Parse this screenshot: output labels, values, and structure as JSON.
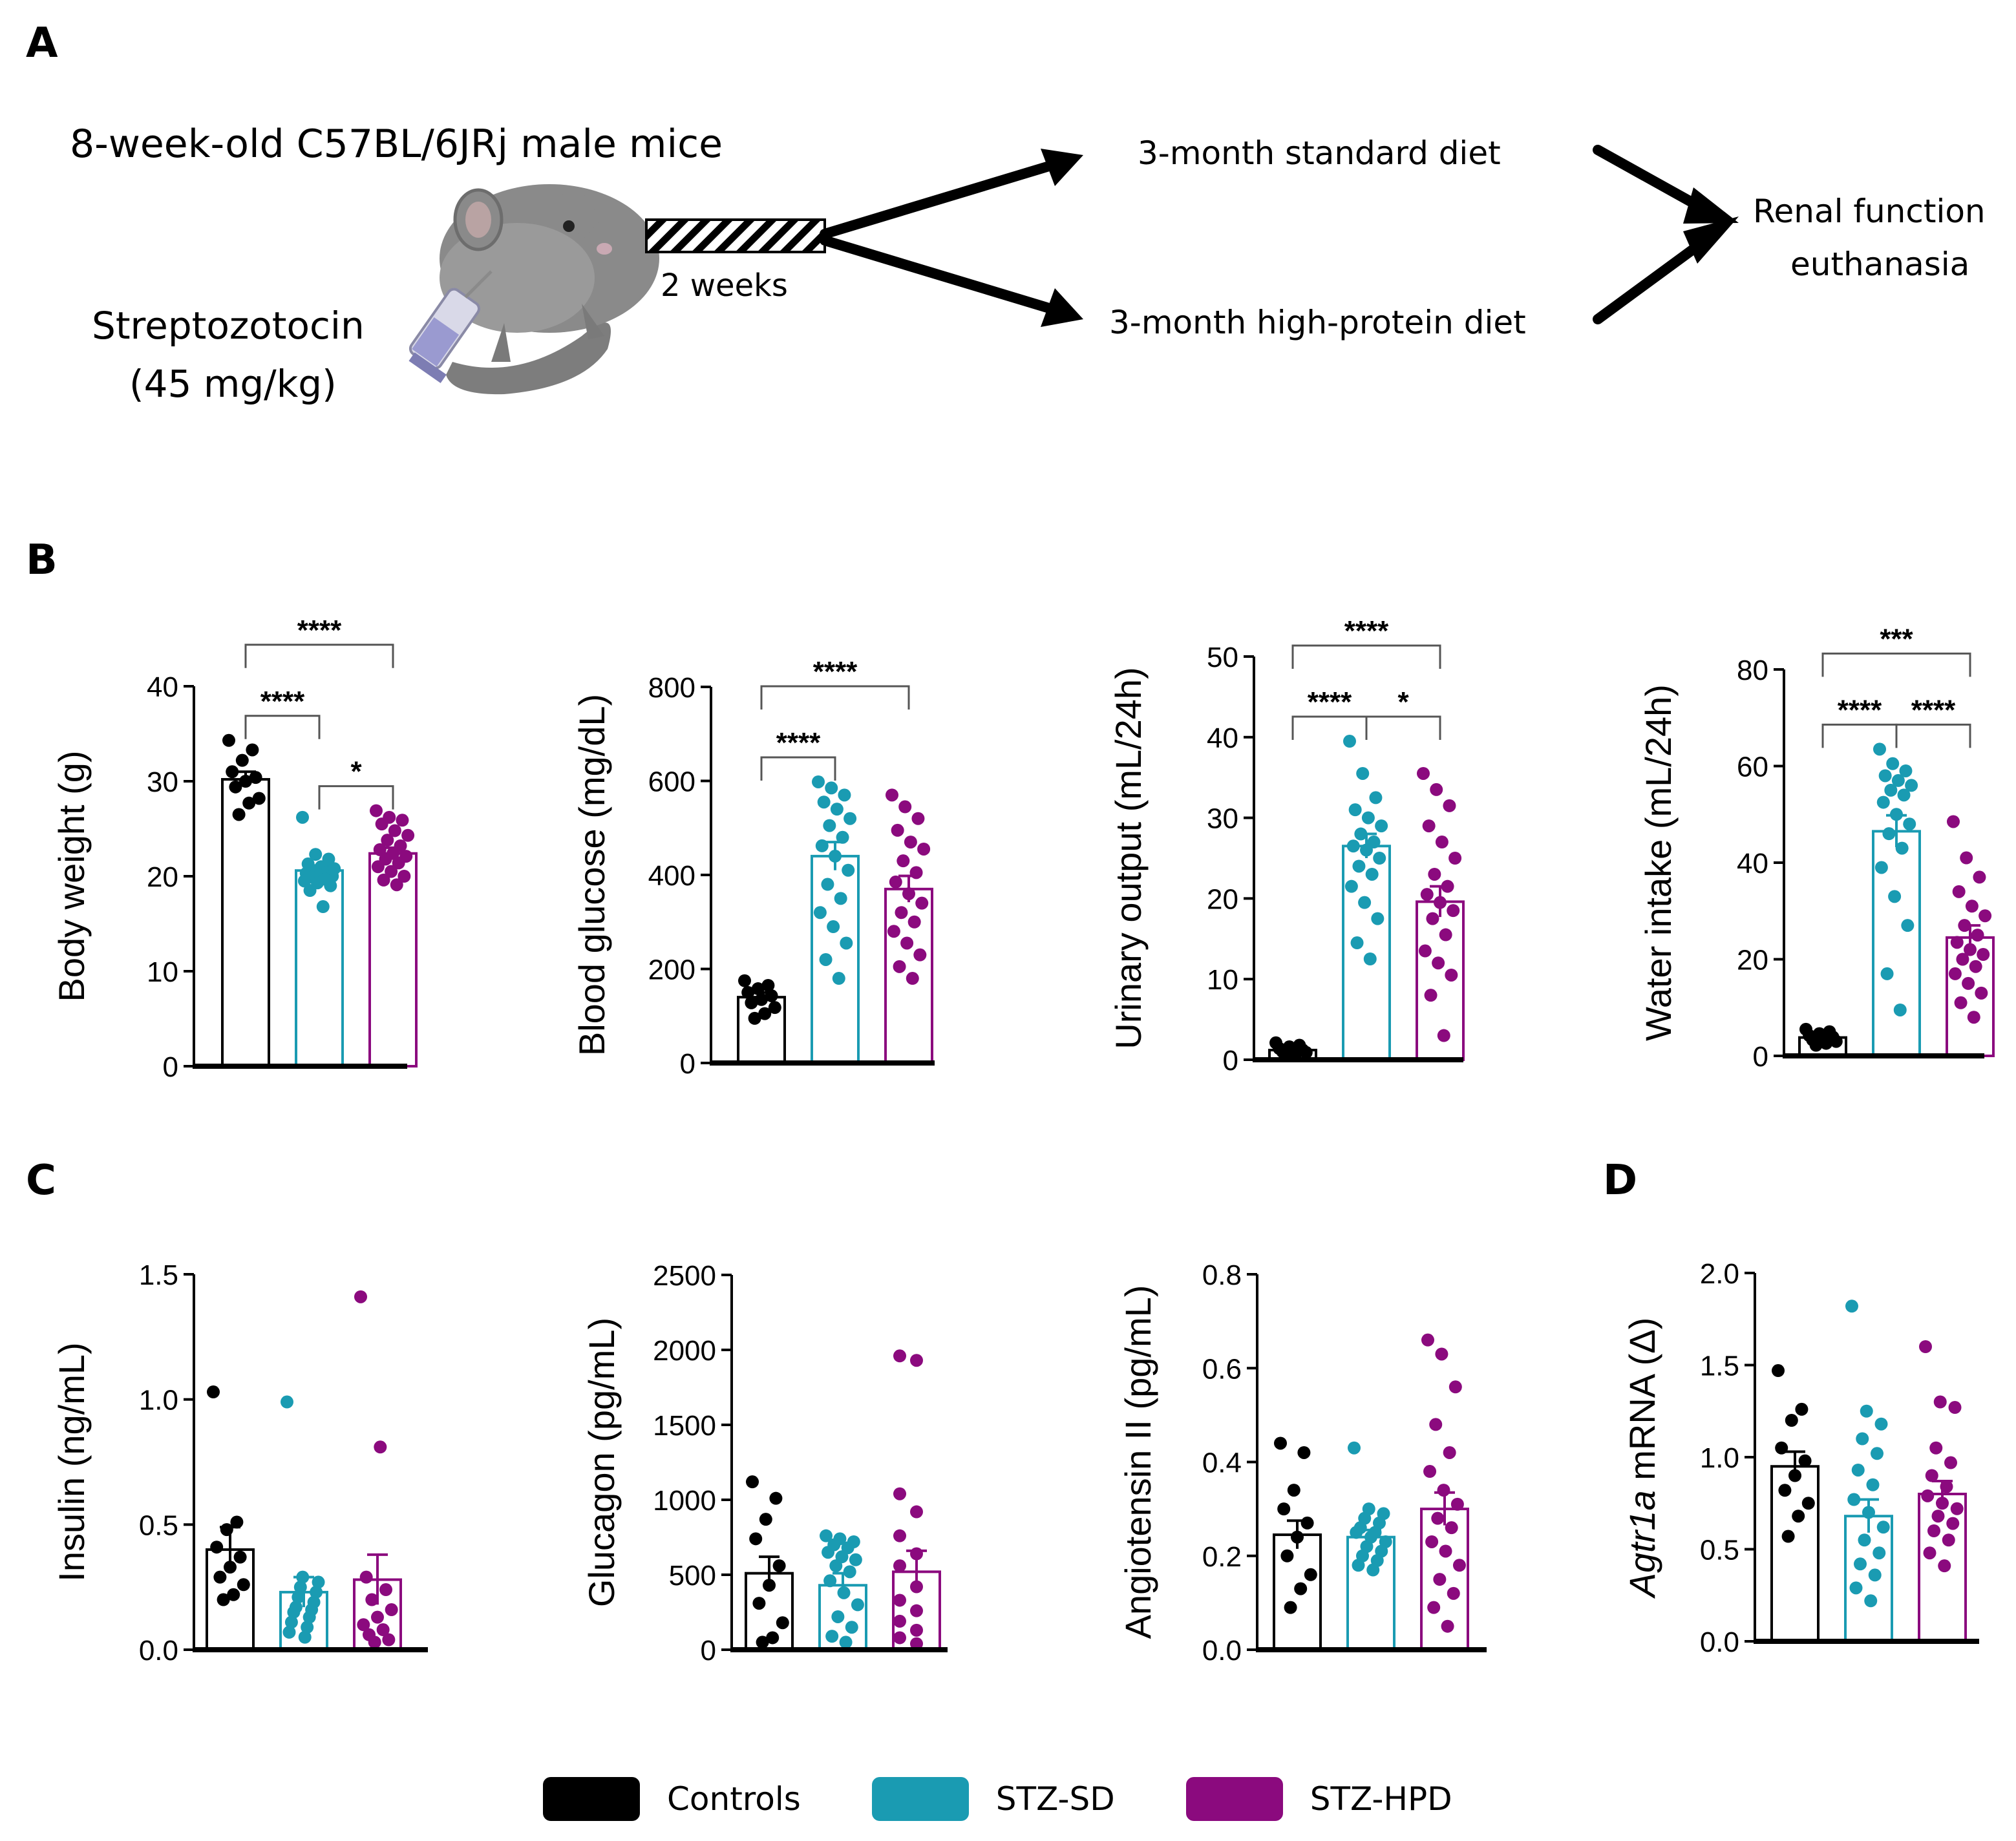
{
  "panels": {
    "a": "A",
    "b": "B",
    "c": "C",
    "d": "D"
  },
  "schema": {
    "mice": "8-week-old C57BL/6JRj male mice",
    "drug": "Streptozotocin",
    "dose": "(45 mg/kg)",
    "duration": "2 weeks",
    "diet_standard": "3-month standard diet",
    "diet_high_protein": "3-month high-protein diet",
    "outcome_line1": "Renal function",
    "outcome_line2": "euthanasia",
    "illustration": "mouse-with-syringe-illustration"
  },
  "legend": [
    {
      "label": "Controls",
      "color": "#000000"
    },
    {
      "label": "STZ-SD",
      "color": "#1a9bb2"
    },
    {
      "label": "STZ-HPD",
      "color": "#8b0a7e"
    }
  ],
  "chart_data": [
    {
      "id": "body-weight",
      "type": "bar",
      "ylabel": "Body weight (g)",
      "categories": [
        "Controls",
        "STZ-SD",
        "STZ-HPD"
      ],
      "ylim": [
        0,
        40
      ],
      "yticks": [
        "0",
        "10",
        "20",
        "30",
        "40"
      ],
      "values": [
        30.2,
        20.6,
        22.4
      ],
      "sem": [
        0.8,
        0.5,
        0.6
      ],
      "points": [
        [
          34.3,
          33.3,
          32.2,
          31.0,
          30.4,
          30.0,
          29.4,
          28.2,
          27.7,
          26.5
        ],
        [
          26.2,
          22.3,
          21.8,
          21.3,
          21.0,
          20.8,
          20.6,
          20.4,
          20.3,
          20.1,
          20.0,
          19.9,
          19.7,
          19.5,
          19.3,
          19.0,
          18.5,
          16.8
        ],
        [
          26.9,
          26.2,
          25.9,
          25.5,
          24.8,
          24.3,
          23.8,
          23.2,
          22.8,
          22.4,
          22.1,
          21.8,
          21.4,
          21.0,
          20.5,
          20.0,
          19.6,
          19.1
        ]
      ],
      "significance": [
        {
          "from": 0,
          "to": 1,
          "label": "****"
        },
        {
          "from": 1,
          "to": 2,
          "label": "*"
        },
        {
          "from": 0,
          "to": 2,
          "label": "****"
        }
      ]
    },
    {
      "id": "blood-glucose",
      "type": "bar",
      "ylabel": "Blood glucose (mg/dL)",
      "categories": [
        "Controls",
        "STZ-SD",
        "STZ-HPD"
      ],
      "ylim": [
        0,
        800
      ],
      "yticks": [
        "0",
        "200",
        "400",
        "600",
        "800"
      ],
      "values": [
        140,
        440,
        370
      ],
      "sem": [
        10,
        30,
        28
      ],
      "points": [
        [
          175,
          165,
          158,
          150,
          143,
          135,
          128,
          118,
          105,
          95
        ],
        [
          598,
          585,
          570,
          555,
          540,
          520,
          505,
          480,
          462,
          440,
          410,
          380,
          350,
          320,
          290,
          255,
          220,
          180
        ],
        [
          570,
          545,
          520,
          495,
          470,
          455,
          430,
          405,
          385,
          360,
          340,
          320,
          300,
          280,
          255,
          230,
          205,
          180
        ]
      ],
      "significance": [
        {
          "from": 0,
          "to": 1,
          "label": "****"
        },
        {
          "from": 0,
          "to": 2,
          "label": "****"
        }
      ]
    },
    {
      "id": "urinary-output",
      "type": "bar",
      "ylabel": "Urinary output (mL/24h)",
      "categories": [
        "Controls",
        "STZ-SD",
        "STZ-HPD"
      ],
      "ylim": [
        0,
        50
      ],
      "yticks": [
        "0",
        "10",
        "20",
        "30",
        "40",
        "50"
      ],
      "values": [
        1.2,
        26.5,
        19.6
      ],
      "sem": [
        0.2,
        1.5,
        1.9
      ],
      "points": [
        [
          2.1,
          1.8,
          1.6,
          1.4,
          1.2,
          1.1,
          1.0,
          0.9,
          0.8,
          0.6
        ],
        [
          39.5,
          35.5,
          32.5,
          31.0,
          30.0,
          29.0,
          28.0,
          27.0,
          26.5,
          26.0,
          25.0,
          24.0,
          23.0,
          21.5,
          19.5,
          17.5,
          14.5,
          12.5
        ],
        [
          35.5,
          33.5,
          31.5,
          29.0,
          27.0,
          25.0,
          23.0,
          21.5,
          20.5,
          19.5,
          18.5,
          17.5,
          15.5,
          13.5,
          12.0,
          10.5,
          8.0,
          3.0
        ]
      ],
      "significance": [
        {
          "from": 0,
          "to": 1,
          "label": "****"
        },
        {
          "from": 1,
          "to": 2,
          "label": "*"
        },
        {
          "from": 0,
          "to": 2,
          "label": "****"
        }
      ]
    },
    {
      "id": "water-intake",
      "type": "bar",
      "ylabel": "Water intake (mL/24h)",
      "categories": [
        "Controls",
        "STZ-SD",
        "STZ-HPD"
      ],
      "ylim": [
        0,
        80
      ],
      "yticks": [
        "0",
        "20",
        "40",
        "60",
        "80"
      ],
      "values": [
        3.8,
        46.5,
        24.5
      ],
      "sem": [
        0.3,
        3.3,
        2.5
      ],
      "points": [
        [
          5.5,
          5.0,
          4.6,
          4.2,
          3.9,
          3.6,
          3.3,
          3.0,
          2.6,
          2.2
        ],
        [
          63.5,
          60.5,
          59.0,
          58.0,
          57.0,
          56.0,
          55.0,
          54.0,
          52.5,
          50.0,
          48.0,
          46.0,
          43.0,
          39.0,
          33.0,
          27.0,
          17.0,
          9.5
        ],
        [
          48.5,
          41.0,
          37.0,
          34.0,
          31.0,
          29.0,
          27.0,
          25.0,
          23.5,
          22.0,
          21.0,
          20.0,
          18.5,
          17.0,
          15.0,
          13.0,
          11.0,
          8.0
        ]
      ],
      "significance": [
        {
          "from": 0,
          "to": 1,
          "label": "****"
        },
        {
          "from": 1,
          "to": 2,
          "label": "****"
        },
        {
          "from": 0,
          "to": 2,
          "label": "***"
        }
      ]
    },
    {
      "id": "insulin",
      "type": "bar",
      "ylabel": "Insulin (ng/mL)",
      "categories": [
        "Controls",
        "STZ-SD",
        "STZ-HPD"
      ],
      "ylim": [
        0,
        1.5
      ],
      "yticks": [
        "0.0",
        "0.5",
        "1.0",
        "1.5"
      ],
      "values": [
        0.4,
        0.23,
        0.28
      ],
      "sem": [
        0.09,
        0.06,
        0.1
      ],
      "points": [
        [
          1.03,
          0.51,
          0.48,
          0.41,
          0.37,
          0.33,
          0.29,
          0.26,
          0.22,
          0.2
        ],
        [
          0.99,
          0.29,
          0.27,
          0.25,
          0.23,
          0.21,
          0.19,
          0.17,
          0.16,
          0.15,
          0.13,
          0.11,
          0.09,
          0.07,
          0.05
        ],
        [
          1.41,
          0.81,
          0.29,
          0.24,
          0.2,
          0.16,
          0.13,
          0.1,
          0.08,
          0.06,
          0.04,
          0.03
        ]
      ],
      "significance": []
    },
    {
      "id": "glucagon",
      "type": "bar",
      "ylabel": "Glucagon (pg/mL)",
      "categories": [
        "Controls",
        "STZ-SD",
        "STZ-HPD"
      ],
      "ylim": [
        0,
        2500
      ],
      "yticks": [
        "0",
        "500",
        "1000",
        "1500",
        "2000",
        "2500"
      ],
      "values": [
        510,
        430,
        520
      ],
      "sem": [
        110,
        80,
        140
      ],
      "points": [
        [
          1120,
          1010,
          870,
          740,
          560,
          430,
          310,
          180,
          80,
          50
        ],
        [
          760,
          740,
          720,
          700,
          680,
          650,
          620,
          600,
          560,
          520,
          460,
          380,
          300,
          220,
          150,
          90,
          50
        ],
        [
          1960,
          1930,
          1040,
          920,
          760,
          640,
          560,
          420,
          330,
          260,
          190,
          130,
          80,
          40
        ]
      ],
      "significance": []
    },
    {
      "id": "angiotensin",
      "type": "bar",
      "ylabel": "Angiotensin II (pg/mL)",
      "categories": [
        "Controls",
        "STZ-SD",
        "STZ-HPD"
      ],
      "ylim": [
        0,
        0.8
      ],
      "yticks": [
        "0.0",
        "0.2",
        "0.4",
        "0.6",
        "0.8"
      ],
      "values": [
        0.245,
        0.24,
        0.3
      ],
      "sem": [
        0.03,
        0.015,
        0.035
      ],
      "points": [
        [
          0.44,
          0.42,
          0.34,
          0.3,
          0.27,
          0.24,
          0.2,
          0.16,
          0.13,
          0.09
        ],
        [
          0.43,
          0.3,
          0.29,
          0.28,
          0.27,
          0.26,
          0.25,
          0.25,
          0.24,
          0.23,
          0.22,
          0.21,
          0.2,
          0.19,
          0.18,
          0.17
        ],
        [
          0.66,
          0.63,
          0.56,
          0.48,
          0.42,
          0.38,
          0.34,
          0.31,
          0.28,
          0.26,
          0.23,
          0.21,
          0.18,
          0.15,
          0.12,
          0.09,
          0.05
        ]
      ],
      "significance": []
    },
    {
      "id": "agtr1a",
      "type": "bar",
      "ylabel_italic": "Agtr1a",
      "ylabel": " mRNA (Δ)",
      "categories": [
        "Controls",
        "STZ-SD",
        "STZ-HPD"
      ],
      "ylim": [
        0,
        2.0
      ],
      "yticks": [
        "0.0",
        "0.5",
        "1.0",
        "1.5",
        "2.0"
      ],
      "values": [
        0.95,
        0.68,
        0.8
      ],
      "sem": [
        0.08,
        0.09,
        0.07
      ],
      "points": [
        [
          1.47,
          1.26,
          1.2,
          1.05,
          0.98,
          0.9,
          0.82,
          0.75,
          0.68,
          0.57
        ],
        [
          1.82,
          1.25,
          1.18,
          1.1,
          1.02,
          0.93,
          0.85,
          0.77,
          0.7,
          0.62,
          0.55,
          0.48,
          0.42,
          0.36,
          0.29,
          0.22
        ],
        [
          1.6,
          1.3,
          1.27,
          1.05,
          0.97,
          0.9,
          0.84,
          0.79,
          0.75,
          0.72,
          0.68,
          0.64,
          0.6,
          0.55,
          0.48,
          0.41
        ]
      ],
      "significance": []
    }
  ]
}
